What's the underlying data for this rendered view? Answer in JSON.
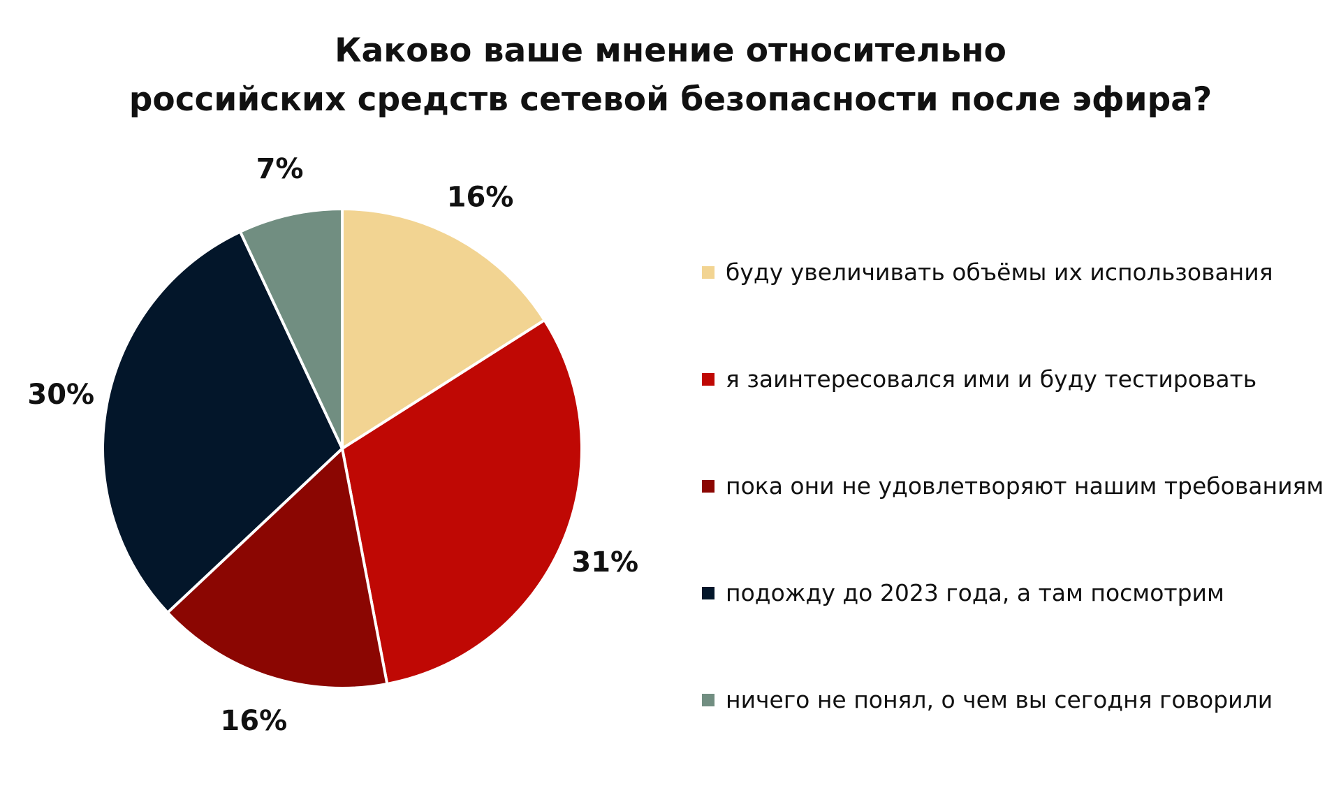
{
  "title": {
    "line1": "Каково ваше мнение относительно",
    "line2": "российских средств сетевой безопасности после эфира?"
  },
  "chart_data": {
    "type": "pie",
    "title": "Каково ваше мнение относительно российских средств сетевой безопасности после эфира?",
    "unit": "%",
    "start": "12 o'clock",
    "direction": "clockwise",
    "legend_position": "right",
    "slices": [
      {
        "label": "буду увеличивать объёмы их использования",
        "value": 16,
        "display": "16%",
        "color": "#f2d492"
      },
      {
        "label": "я заинтересовался ими и буду тестировать",
        "value": 31,
        "display": "31%",
        "color": "#bf0804"
      },
      {
        "label": "пока они не удовлетворяют нашим требованиям",
        "value": 16,
        "display": "16%",
        "color": "#8b0602"
      },
      {
        "label": "подожду до 2023 года, а там посмотрим",
        "value": 30,
        "display": "30%",
        "color": "#03162a"
      },
      {
        "label": "ничего не понял, о чем вы сегодня говорили",
        "value": 7,
        "display": "7%",
        "color": "#718e81"
      }
    ]
  }
}
